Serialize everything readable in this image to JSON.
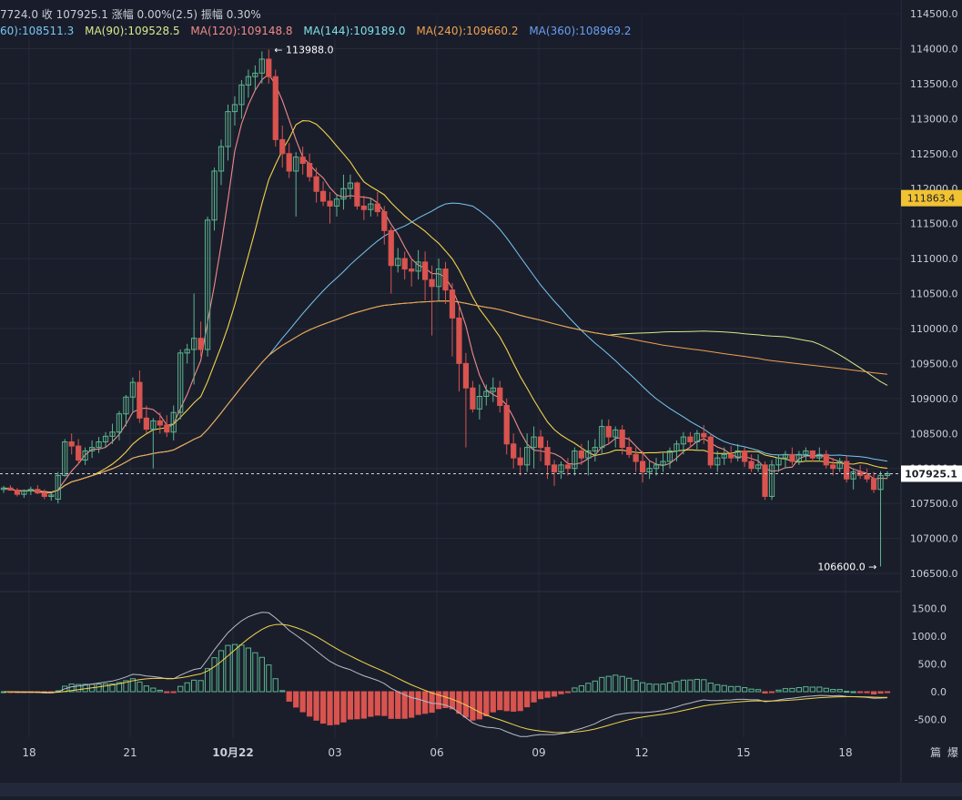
{
  "header": {
    "info_line": "7724.0  收 107925.1  涨幅 0.00%(2.5)  振幅 0.30%",
    "ma_line": [
      {
        "label": "60):108511.3",
        "color": "#79c6f2"
      },
      {
        "label": "MA(90):109528.5",
        "color": "#d8e98a"
      },
      {
        "label": "MA(120):109148.8",
        "color": "#f08a8a"
      },
      {
        "label": "MA(144):109189.0",
        "color": "#7fe0e6"
      },
      {
        "label": "MA(240):109660.2",
        "color": "#f0a050"
      },
      {
        "label": "MA(360):108969.2",
        "color": "#6a9ef0"
      }
    ]
  },
  "colors": {
    "background": "#1a1e2b",
    "up": "#5cb58f",
    "down": "#d9534f",
    "grid": "#262b3a",
    "axis_text": "#c9cdd6",
    "current_price_bg": "#ffffff",
    "marker_price_bg": "#f1c232"
  },
  "chart_data": {
    "type": "candlestick",
    "price_axis": {
      "ticks": [
        "114500.0",
        "114000.0",
        "113500.0",
        "113000.0",
        "112500.0",
        "112000.0",
        "111500.0",
        "111000.0",
        "110500.0",
        "110000.0",
        "109500.0",
        "109000.0",
        "108500.0",
        "108000.0",
        "107500.0",
        "107000.0",
        "106500.0"
      ],
      "range": [
        106300,
        114600
      ]
    },
    "x_axis": {
      "ticks": [
        "18",
        "21",
        "10月22",
        "03",
        "06",
        "09",
        "12",
        "15",
        "18"
      ]
    },
    "current_price": "107925.1",
    "marker_price": "111863.4",
    "annotations": [
      {
        "text": "← 113988.0",
        "price": 113988.0
      },
      {
        "text": "106600.0 →",
        "price": 106600.0
      }
    ],
    "candles": [
      [
        107700,
        107750,
        107650,
        107720
      ],
      [
        107720,
        107760,
        107680,
        107690
      ],
      [
        107690,
        107720,
        107600,
        107630
      ],
      [
        107630,
        107700,
        107580,
        107680
      ],
      [
        107680,
        107740,
        107620,
        107700
      ],
      [
        107700,
        107760,
        107630,
        107650
      ],
      [
        107650,
        107700,
        107560,
        107600
      ],
      [
        107600,
        107650,
        107540,
        107620
      ],
      [
        107560,
        107950,
        107500,
        107900
      ],
      [
        107900,
        108420,
        107880,
        108380
      ],
      [
        108380,
        108500,
        108200,
        108320
      ],
      [
        108320,
        108420,
        108060,
        108120
      ],
      [
        108120,
        108300,
        108050,
        108250
      ],
      [
        108250,
        108400,
        108150,
        108300
      ],
      [
        108300,
        108450,
        108220,
        108380
      ],
      [
        108380,
        108520,
        108300,
        108460
      ],
      [
        108460,
        108640,
        108350,
        108520
      ],
      [
        108520,
        108820,
        108400,
        108780
      ],
      [
        108780,
        109050,
        108600,
        109020
      ],
      [
        109020,
        109300,
        108800,
        109230
      ],
      [
        109230,
        109400,
        108650,
        108720
      ],
      [
        108720,
        108900,
        108500,
        108560
      ],
      [
        108560,
        108720,
        108000,
        108680
      ],
      [
        108680,
        108800,
        108500,
        108620
      ],
      [
        108620,
        108760,
        108450,
        108520
      ],
      [
        108520,
        108900,
        108400,
        108800
      ],
      [
        108800,
        109700,
        108700,
        109650
      ],
      [
        109650,
        109780,
        109500,
        109700
      ],
      [
        109700,
        110500,
        109200,
        109860
      ],
      [
        109860,
        110100,
        109600,
        109700
      ],
      [
        109700,
        111600,
        109600,
        111550
      ],
      [
        111550,
        112300,
        111400,
        112250
      ],
      [
        112250,
        112700,
        112050,
        112600
      ],
      [
        112600,
        113200,
        112400,
        113100
      ],
      [
        113100,
        113320,
        112900,
        113200
      ],
      [
        113200,
        113550,
        113000,
        113480
      ],
      [
        113480,
        113700,
        113300,
        113600
      ],
      [
        113600,
        113760,
        113400,
        113650
      ],
      [
        113650,
        113960,
        113500,
        113850
      ],
      [
        113850,
        113988,
        113500,
        113600
      ],
      [
        113600,
        113700,
        112600,
        112700
      ],
      [
        112700,
        112900,
        112300,
        112500
      ],
      [
        112500,
        112650,
        112150,
        112250
      ],
      [
        112250,
        112520,
        111600,
        112450
      ],
      [
        112450,
        112600,
        112200,
        112360
      ],
      [
        112360,
        112500,
        112100,
        112170
      ],
      [
        112170,
        112300,
        111800,
        111960
      ],
      [
        111960,
        112100,
        111750,
        111820
      ],
      [
        111820,
        111950,
        111500,
        111750
      ],
      [
        111750,
        111920,
        111600,
        111850
      ],
      [
        111850,
        112200,
        111700,
        112000
      ],
      [
        112000,
        112200,
        111850,
        112080
      ],
      [
        112080,
        112100,
        111700,
        111750
      ],
      [
        111750,
        111900,
        111550,
        111700
      ],
      [
        111700,
        111860,
        111600,
        111780
      ],
      [
        111780,
        111950,
        111600,
        111670
      ],
      [
        111670,
        111750,
        111200,
        111400
      ],
      [
        111400,
        111450,
        110500,
        110900
      ],
      [
        110900,
        111150,
        110800,
        111000
      ],
      [
        111000,
        111100,
        110700,
        110850
      ],
      [
        110850,
        111000,
        110600,
        110820
      ],
      [
        110820,
        111120,
        110700,
        110950
      ],
      [
        110950,
        111100,
        110400,
        110700
      ],
      [
        110700,
        110900,
        109900,
        110600
      ],
      [
        110600,
        111000,
        110400,
        110850
      ],
      [
        110850,
        110950,
        110350,
        110550
      ],
      [
        110550,
        110650,
        109600,
        110150
      ],
      [
        110150,
        110350,
        109100,
        109500
      ],
      [
        109500,
        109650,
        108300,
        109150
      ],
      [
        109150,
        109250,
        108800,
        108850
      ],
      [
        108850,
        109200,
        108700,
        109030
      ],
      [
        109030,
        109200,
        108900,
        109100
      ],
      [
        109100,
        109300,
        108950,
        109150
      ],
      [
        109150,
        109250,
        108800,
        108900
      ],
      [
        108900,
        109000,
        108200,
        108350
      ],
      [
        108350,
        108500,
        108000,
        108150
      ],
      [
        108150,
        108300,
        107900,
        108050
      ],
      [
        108050,
        108500,
        107950,
        108300
      ],
      [
        108300,
        108600,
        108000,
        108450
      ],
      [
        108450,
        108550,
        108100,
        108300
      ],
      [
        108300,
        108400,
        107850,
        108050
      ],
      [
        108050,
        108120,
        107750,
        107950
      ],
      [
        107950,
        108100,
        107850,
        108050
      ],
      [
        108050,
        108150,
        107900,
        108000
      ],
      [
        108000,
        108300,
        107900,
        108250
      ],
      [
        108250,
        108350,
        108050,
        108150
      ],
      [
        108150,
        108400,
        107900,
        108250
      ],
      [
        108250,
        108420,
        108100,
        108300
      ],
      [
        108300,
        108700,
        108200,
        108600
      ],
      [
        108600,
        108700,
        108350,
        108450
      ],
      [
        108450,
        108600,
        108300,
        108550
      ],
      [
        108550,
        108620,
        108200,
        108300
      ],
      [
        108300,
        108450,
        108150,
        108200
      ],
      [
        108200,
        108300,
        107950,
        108100
      ],
      [
        108100,
        108250,
        107800,
        107950
      ],
      [
        107950,
        108100,
        107850,
        108000
      ],
      [
        108000,
        108150,
        107900,
        108050
      ],
      [
        108050,
        108220,
        107950,
        108100
      ],
      [
        108100,
        108300,
        108000,
        108250
      ],
      [
        108250,
        108400,
        108100,
        108350
      ],
      [
        108350,
        108520,
        108200,
        108450
      ],
      [
        108450,
        108520,
        108300,
        108380
      ],
      [
        108380,
        108550,
        108250,
        108500
      ],
      [
        108500,
        108620,
        108350,
        108450
      ],
      [
        108450,
        108500,
        108000,
        108050
      ],
      [
        108050,
        108250,
        107950,
        108150
      ],
      [
        108150,
        108300,
        108050,
        108200
      ],
      [
        108200,
        108320,
        108080,
        108150
      ],
      [
        108150,
        108350,
        108100,
        108250
      ],
      [
        108250,
        108300,
        108020,
        108100
      ],
      [
        108100,
        108200,
        107950,
        108000
      ],
      [
        108000,
        108200,
        107950,
        108050
      ],
      [
        108050,
        108100,
        107550,
        107600
      ],
      [
        107600,
        108120,
        107550,
        108050
      ],
      [
        108050,
        108200,
        107950,
        108150
      ],
      [
        108150,
        108250,
        108000,
        108200
      ],
      [
        108200,
        108300,
        108050,
        108100
      ],
      [
        108100,
        108250,
        108050,
        108200
      ],
      [
        108200,
        108300,
        108100,
        108250
      ],
      [
        108250,
        108260,
        108100,
        108150
      ],
      [
        108150,
        108300,
        108100,
        108200
      ],
      [
        108200,
        108260,
        108000,
        108050
      ],
      [
        108050,
        108150,
        107900,
        108000
      ],
      [
        108000,
        108150,
        107950,
        108100
      ],
      [
        108100,
        108180,
        107800,
        107850
      ],
      [
        107850,
        108000,
        107700,
        107950
      ],
      [
        107950,
        108050,
        107850,
        107900
      ],
      [
        107900,
        108000,
        107800,
        107850
      ],
      [
        107850,
        107950,
        107650,
        107700
      ],
      [
        107700,
        107960,
        106600,
        107900
      ],
      [
        107900,
        107960,
        107860,
        107925
      ]
    ]
  },
  "macd": {
    "axis_ticks": [
      "1500.0",
      "1000.0",
      "500.0",
      "0.0",
      "-500.0"
    ],
    "range": [
      -700,
      1700
    ]
  },
  "side_labels": [
    "篇",
    "爆"
  ]
}
